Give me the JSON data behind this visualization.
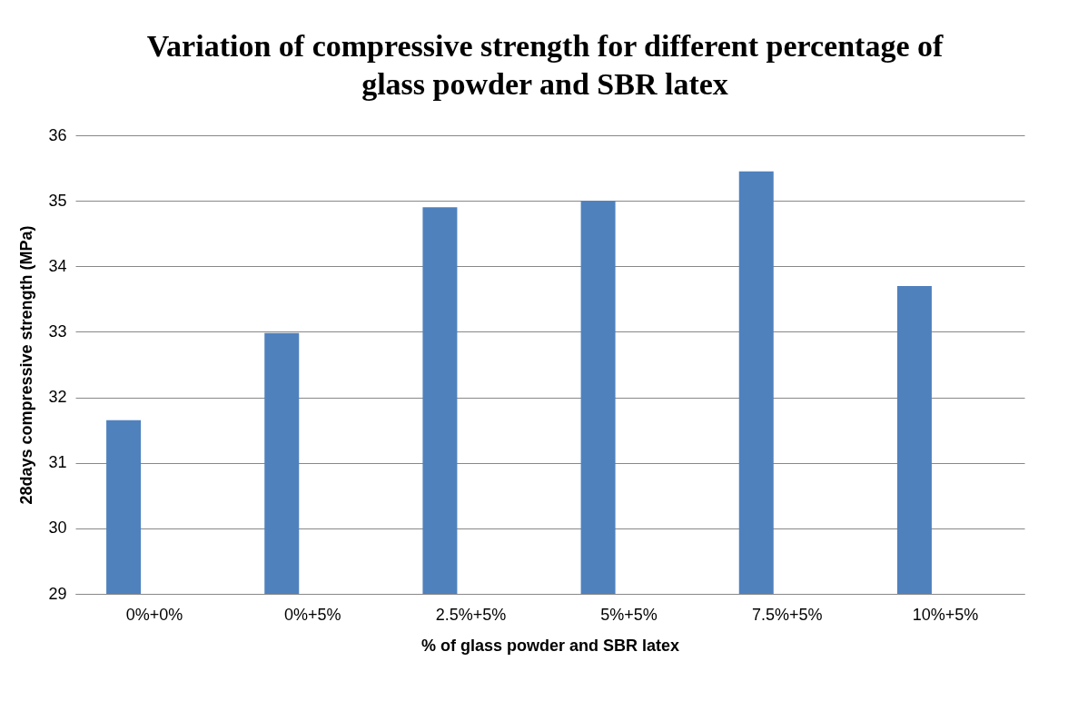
{
  "chart_data": {
    "type": "bar",
    "title": "Variation of compressive strength for different percentage of glass powder and SBR latex",
    "xlabel": "% of glass powder and SBR latex",
    "ylabel": "28days compressive strength (MPa)",
    "categories": [
      "0%+0%",
      "0%+5%",
      "2.5%+5%",
      "5%+5%",
      "7.5%+5%",
      "10%+5%"
    ],
    "values": [
      31.65,
      32.98,
      34.9,
      35.0,
      35.45,
      33.7
    ],
    "color": "#4f81bd",
    "ylim": [
      29,
      36
    ],
    "yticks": [
      29,
      30,
      31,
      32,
      33,
      34,
      35,
      36
    ],
    "grid": "y"
  }
}
